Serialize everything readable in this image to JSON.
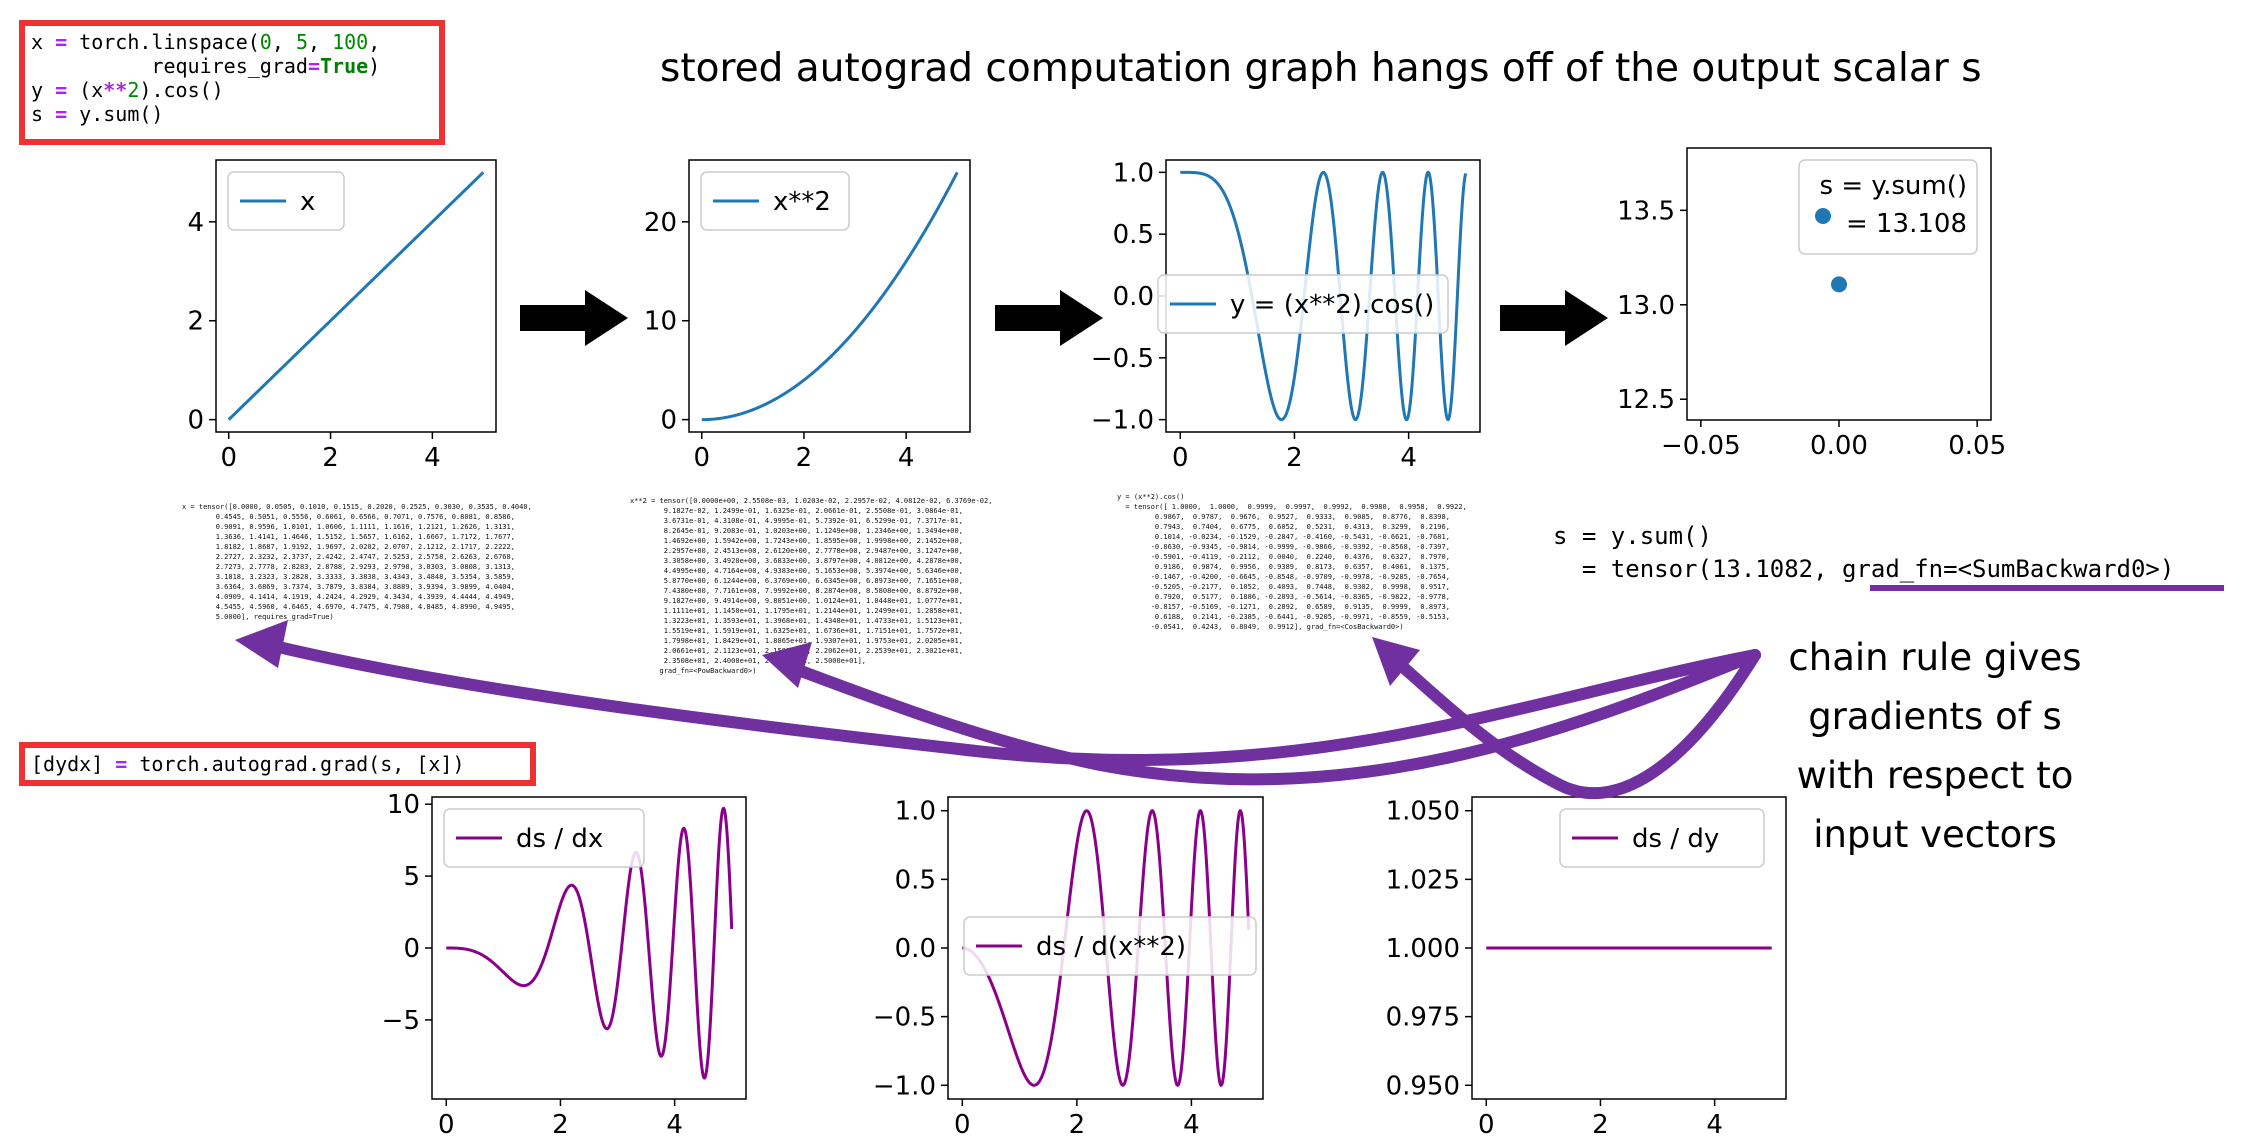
{
  "title": "stored autograd computation graph hangs off of the output scalar s",
  "code_forward": {
    "line1_a": "x ",
    "line1_op": "=",
    "line1_b": " torch.linspace(",
    "line1_n0": "0",
    "line1_c": ", ",
    "line1_n1": "5",
    "line1_d": ", ",
    "line1_n2": "100",
    "line1_e": ",",
    "line2_a": "          requires_grad",
    "line2_op": "=",
    "line2_true": "True",
    "line2_b": ")",
    "line3_a": "y ",
    "line3_op": "=",
    "line3_b": " (x",
    "line3_pow": "**",
    "line3_n": "2",
    "line3_c": ").cos()",
    "line4_a": "s ",
    "line4_op": "=",
    "line4_b": " y.sum()"
  },
  "code_grad": {
    "a": "[dydx] ",
    "op": "=",
    "b": " torch.autograd.grad(s, [x])"
  },
  "sum_output": {
    "line1": "s = y.sum()",
    "line2_a": "  = tensor(13.1082, ",
    "line2_b": "grad_fn=<SumBackward0>)"
  },
  "chain_text": [
    "chain rule gives",
    "gradients of s",
    "with respect to",
    "input vectors"
  ],
  "tensor_dumps": {
    "x": "x = tensor([0.0000, 0.0505, 0.1010, 0.1515, 0.2020, 0.2525, 0.3030, 0.3535, 0.4040,\n        0.4545, 0.5051, 0.5556, 0.6061, 0.6566, 0.7071, 0.7576, 0.8081, 0.8586,\n        0.9091, 0.9596, 1.0101, 1.0606, 1.1111, 1.1616, 1.2121, 1.2626, 1.3131,\n        1.3636, 1.4141, 1.4646, 1.5152, 1.5657, 1.6162, 1.6667, 1.7172, 1.7677,\n        1.8182, 1.8687, 1.9192, 1.9697, 2.0202, 2.0707, 2.1212, 2.1717, 2.2222,\n        2.2727, 2.3232, 2.3737, 2.4242, 2.4747, 2.5253, 2.5758, 2.6263, 2.6768,\n        2.7273, 2.7778, 2.8283, 2.8788, 2.9293, 2.9798, 3.0303, 3.0808, 3.1313,\n        3.1818, 3.2323, 3.2828, 3.3333, 3.3838, 3.4343, 3.4848, 3.5354, 3.5859,\n        3.6364, 3.6869, 3.7374, 3.7879, 3.8384, 3.8889, 3.9394, 3.9899, 4.0404,\n        4.0909, 4.1414, 4.1919, 4.2424, 4.2929, 4.3434, 4.3939, 4.4444, 4.4949,\n        4.5455, 4.5960, 4.6465, 4.6970, 4.7475, 4.7980, 4.8485, 4.8990, 4.9495,\n        5.0000], requires_grad=True)",
    "x2": "x**2 = tensor([0.0000e+00, 2.5508e-03, 1.0203e-02, 2.2957e-02, 4.0812e-02, 6.3769e-02,\n        9.1827e-02, 1.2499e-01, 1.6325e-01, 2.0661e-01, 2.5508e-01, 3.0864e-01,\n        3.6731e-01, 4.3108e-01, 4.9995e-01, 5.7392e-01, 6.5299e-01, 7.3717e-01,\n        8.2645e-01, 9.2083e-01, 1.0203e+00, 1.1249e+00, 1.2346e+00, 1.3494e+00,\n        1.4692e+00, 1.5942e+00, 1.7243e+00, 1.8595e+00, 1.9998e+00, 2.1452e+00,\n        2.2957e+00, 2.4513e+00, 2.6120e+00, 2.7778e+00, 2.9487e+00, 3.1247e+00,\n        3.3058e+00, 3.4920e+00, 3.6833e+00, 3.8797e+00, 4.0812e+00, 4.2878e+00,\n        4.4995e+00, 4.7164e+00, 4.9383e+00, 5.1653e+00, 5.3974e+00, 5.6346e+00,\n        5.8770e+00, 6.1244e+00, 6.3769e+00, 6.6345e+00, 6.8973e+00, 7.1651e+00,\n        7.4380e+00, 7.7161e+00, 7.9992e+00, 8.2874e+00, 8.5808e+00, 8.8792e+00,\n        9.1827e+00, 9.4914e+00, 9.8051e+00, 1.0124e+01, 1.0448e+01, 1.0777e+01,\n        1.1111e+01, 1.1450e+01, 1.1795e+01, 1.2144e+01, 1.2499e+01, 1.2858e+01,\n        1.3223e+01, 1.3593e+01, 1.3968e+01, 1.4348e+01, 1.4733e+01, 1.5123e+01,\n        1.5519e+01, 1.5919e+01, 1.6325e+01, 1.6736e+01, 1.7151e+01, 1.7572e+01,\n        1.7998e+01, 1.8429e+01, 1.8865e+01, 1.9307e+01, 1.9753e+01, 2.0205e+01,\n        2.0661e+01, 2.1123e+01, 2.1590e+01, 2.2062e+01, 2.2539e+01, 2.3021e+01,\n        2.3508e+01, 2.4000e+01, 2.4498e+01, 2.5000e+01],\n       grad_fn=<PowBackward0>)",
    "y": "y = (x**2).cos()\n  = tensor([ 1.0000,  1.0000,  0.9999,  0.9997,  0.9992,  0.9980,  0.9958,  0.9922,\n         0.9867,  0.9787,  0.9676,  0.9527,  0.9333,  0.9085,  0.8776,  0.8398,\n         0.7943,  0.7404,  0.6775,  0.6052,  0.5231,  0.4313,  0.3299,  0.2196,\n         0.1014, -0.0234, -0.1529, -0.2847, -0.4160, -0.5431, -0.6621, -0.7681,\n        -0.8630, -0.9345, -0.9814, -0.9999, -0.9866, -0.9392, -0.8568, -0.7397,\n        -0.5901, -0.4119, -0.2112,  0.0040,  0.2240,  0.4376,  0.6327,  0.7970,\n         0.9186,  0.9874,  0.9956,  0.9389,  0.8173,  0.6357,  0.4061,  0.1375,\n        -0.1467, -0.4200, -0.6645, -0.8548, -0.9709, -0.9978, -0.9285, -0.7654,\n        -0.5205, -0.2177,  0.1052,  0.4093,  0.7448,  0.9302,  0.9998,  0.9517,\n         0.7920,  0.5177,  0.1886, -0.2893, -0.5614, -0.8365, -0.9822, -0.9778,\n        -0.8157, -0.5169, -0.1271,  0.2892,  0.6589,  0.9135,  0.9999,  0.8973,\n         0.6188,  0.2141, -0.2385, -0.6441, -0.9205, -0.9971, -0.8559, -0.5153,\n        -0.0541,  0.4243,  0.8049,  0.9912], grad_fn=<CosBackward0>)"
  },
  "plots": {
    "p_x": {
      "legend": "x",
      "yticks": [
        "0",
        "2",
        "4"
      ],
      "xticks": [
        "0",
        "2",
        "4"
      ]
    },
    "p_x2": {
      "legend": "x**2",
      "yticks": [
        "0",
        "10",
        "20"
      ],
      "xticks": [
        "0",
        "2",
        "4"
      ]
    },
    "p_y": {
      "legend": "y = (x**2).cos()",
      "yticks": [
        "−1.0",
        "−0.5",
        "0.0",
        "0.5",
        "1.0"
      ],
      "xticks": [
        "0",
        "2",
        "4"
      ]
    },
    "p_s": {
      "legend_l1": "s = y.sum()",
      "legend_l2": "= 13.108",
      "yticks": [
        "12.5",
        "13.0",
        "13.5"
      ],
      "xticks": [
        "−0.05",
        "0.00",
        "0.05"
      ]
    },
    "p_dx": {
      "legend": "ds / dx",
      "yticks": [
        "−5",
        "0",
        "5",
        "10"
      ],
      "xticks": [
        "0",
        "2",
        "4"
      ]
    },
    "p_dx2": {
      "legend": "ds / d(x**2)",
      "yticks": [
        "−1.0",
        "−0.5",
        "0.0",
        "0.5",
        "1.0"
      ],
      "xticks": [
        "0",
        "2",
        "4"
      ]
    },
    "p_dy": {
      "legend": "ds / dy",
      "yticks": [
        "0.950",
        "0.975",
        "1.000",
        "1.025",
        "1.050"
      ],
      "xticks": [
        "0",
        "2",
        "4"
      ]
    }
  },
  "chart_data": [
    {
      "type": "line",
      "x_range": [
        0,
        5
      ],
      "n_points": 100,
      "series": [
        {
          "name": "x",
          "function": "x"
        }
      ],
      "ylim": [
        -0.25,
        5.25
      ],
      "color": "#1f77b4"
    },
    {
      "type": "line",
      "x_range": [
        0,
        5
      ],
      "n_points": 100,
      "series": [
        {
          "name": "x**2",
          "function": "x^2"
        }
      ],
      "ylim": [
        -1.25,
        26.25
      ],
      "color": "#1f77b4"
    },
    {
      "type": "line",
      "x_range": [
        0,
        5
      ],
      "n_points": 100,
      "series": [
        {
          "name": "y = (x**2).cos()",
          "function": "cos(x^2)"
        }
      ],
      "ylim": [
        -1.1,
        1.1
      ],
      "color": "#1f77b4"
    },
    {
      "type": "scatter",
      "series": [
        {
          "name": "s = y.sum() = 13.108",
          "x": [
            0.0
          ],
          "y": [
            13.108
          ]
        }
      ],
      "xlim": [
        -0.055,
        0.055
      ],
      "ylim": [
        12.39,
        13.83
      ],
      "color": "#1f77b4"
    },
    {
      "type": "line",
      "x_range": [
        0,
        5
      ],
      "n_points": 100,
      "series": [
        {
          "name": "ds / dx",
          "function": "-2x*sin(x^2)"
        }
      ],
      "ylim": [
        -10.5,
        10.5
      ],
      "color": "#8b008b"
    },
    {
      "type": "line",
      "x_range": [
        0,
        5
      ],
      "n_points": 100,
      "series": [
        {
          "name": "ds / d(x**2)",
          "function": "-sin(x^2)"
        }
      ],
      "ylim": [
        -1.1,
        1.1
      ],
      "color": "#8b008b"
    },
    {
      "type": "line",
      "x_range": [
        0,
        5
      ],
      "n_points": 100,
      "series": [
        {
          "name": "ds / dy",
          "function": "1"
        }
      ],
      "ylim": [
        0.945,
        1.055
      ],
      "color": "#8b008b"
    }
  ],
  "colors": {
    "plot_blue": "#1f77b4",
    "grad_purple": "#8b0a8b",
    "arrow_purple": "#7030a0",
    "box_red": "#ec3232"
  }
}
